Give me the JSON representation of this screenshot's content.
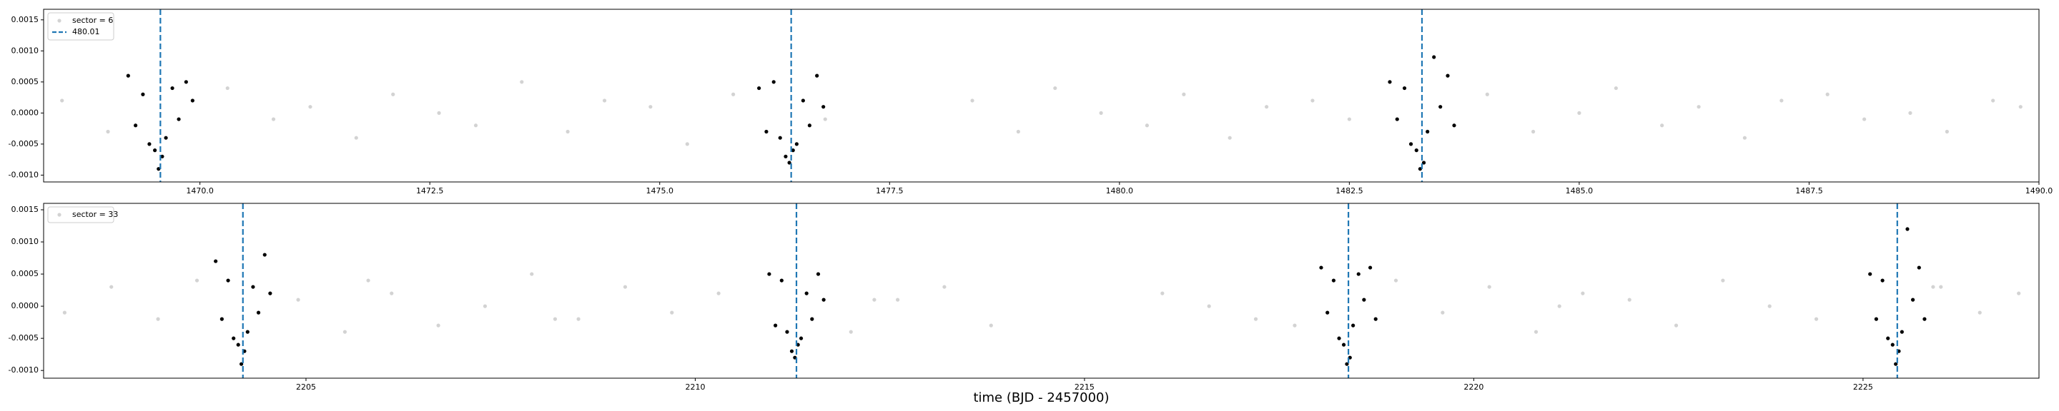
{
  "chart_data": [
    {
      "type": "scatter",
      "xlim": [
        1468.3,
        1490.0
      ],
      "ylim": [
        -0.00111,
        0.00167
      ],
      "xticks": [
        {
          "value": 1470,
          "label": "1470.0"
        },
        {
          "value": 1472.5,
          "label": "1472.5"
        },
        {
          "value": 1475,
          "label": "1475.0"
        },
        {
          "value": 1477.5,
          "label": "1477.5"
        },
        {
          "value": 1480,
          "label": "1480.0"
        },
        {
          "value": 1482.5,
          "label": "1482.5"
        },
        {
          "value": 1485,
          "label": "1485.0"
        },
        {
          "value": 1487.5,
          "label": "1487.5"
        },
        {
          "value": 1490,
          "label": "1490.0"
        }
      ],
      "yticks": [
        {
          "value": -0.001,
          "label": "-0.0010"
        },
        -0.0005,
        {
          "value": 0,
          "label": "0.0000"
        },
        0.0005,
        {
          "value": 0.001,
          "label": "0.0010"
        },
        0.0015
      ],
      "legend": "upper left",
      "series": [
        {
          "name": "sector = 6",
          "color": "#d3d3d3",
          "x": [
            1468.5,
            1469.0,
            1470.3,
            1470.8,
            1471.2,
            1471.7,
            1472.1,
            1472.6,
            1473.0,
            1473.5,
            1474.0,
            1474.4,
            1474.9,
            1475.3,
            1475.8,
            1476.8,
            1478.4,
            1478.9,
            1479.3,
            1479.8,
            1480.3,
            1480.7,
            1481.2,
            1481.6,
            1482.1,
            1482.5,
            1484.0,
            1484.5,
            1485.0,
            1485.4,
            1485.9,
            1486.3,
            1486.8,
            1487.2,
            1487.7,
            1488.1,
            1488.6,
            1489.0,
            1489.5,
            1489.8
          ],
          "values": [
            0.0002,
            -0.0003,
            0.0004,
            -0.0001,
            0.0001,
            -0.0004,
            0.0003,
            0.0,
            -0.0002,
            0.0005,
            -0.0003,
            0.0002,
            0.0001,
            -0.0005,
            0.0003,
            -0.0001,
            0.0002,
            -0.0003,
            0.0004,
            0.0,
            -0.0002,
            0.0003,
            -0.0004,
            0.0001,
            0.0002,
            -0.0001,
            0.0003,
            -0.0003,
            0.0,
            0.0004,
            -0.0002,
            0.0001,
            -0.0004,
            0.0002,
            0.0003,
            -0.0001,
            0.0,
            -0.0003,
            0.0002,
            0.0001
          ]
        },
        {
          "color": "#000000",
          "x": [
            1469.22,
            1469.3,
            1469.38,
            1469.45,
            1469.51,
            1469.55,
            1469.59,
            1469.63,
            1469.7,
            1469.77,
            1469.85,
            1469.92,
            1476.08,
            1476.16,
            1476.24,
            1476.31,
            1476.37,
            1476.41,
            1476.45,
            1476.49,
            1476.56,
            1476.63,
            1476.71,
            1476.78,
            1482.94,
            1483.02,
            1483.1,
            1483.17,
            1483.23,
            1483.27,
            1483.31,
            1483.35,
            1483.42,
            1483.49,
            1483.57,
            1483.64
          ],
          "values": [
            0.0006,
            -0.0002,
            0.0003,
            -0.0005,
            -0.0006,
            -0.0009,
            -0.0007,
            -0.0004,
            0.0004,
            -0.0001,
            0.0005,
            0.0002,
            0.0004,
            -0.0003,
            0.0005,
            -0.0004,
            -0.0007,
            -0.0008,
            -0.0006,
            -0.0005,
            0.0002,
            -0.0002,
            0.0006,
            0.0001,
            0.0005,
            -0.0001,
            0.0004,
            -0.0005,
            -0.0006,
            -0.0009,
            -0.0008,
            -0.0003,
            0.0009,
            0.0001,
            0.0006,
            -0.0002
          ]
        }
      ],
      "vlines": {
        "name": "480.01",
        "color": "#1f77b4",
        "x": [
          1469.57,
          1476.43,
          1483.29
        ]
      }
    },
    {
      "type": "scatter",
      "xlim": [
        2201.63,
        2227.26
      ],
      "ylim": [
        -0.00112,
        0.0016
      ],
      "xlabel": "time (BJD - 2457000)",
      "xticks": [
        2205,
        2210,
        2215,
        2220,
        2225
      ],
      "yticks": [
        {
          "value": -0.001,
          "label": "-0.0010"
        },
        -0.0005,
        {
          "value": 0,
          "label": "0.0000"
        },
        0.0005,
        {
          "value": 0.001,
          "label": "0.0010"
        },
        0.0015
      ],
      "legend": "upper left",
      "series": [
        {
          "name": "sector = 33",
          "color": "#d3d3d3",
          "x": [
            2201.9,
            2202.5,
            2203.1,
            2203.6,
            2204.9,
            2205.5,
            2206.1,
            2206.7,
            2207.3,
            2207.9,
            2208.5,
            2209.1,
            2209.7,
            2210.3,
            2212.0,
            2212.6,
            2213.2,
            2213.8,
            2216.0,
            2216.6,
            2217.2,
            2219.0,
            2219.6,
            2220.2,
            2220.8,
            2221.4,
            2222.0,
            2222.6,
            2223.2,
            2223.8,
            2224.4,
            2226.0,
            2226.5,
            2227.0,
            2217.7,
            2212.3,
            2205.8,
            2208.2,
            2221.1,
            2225.9
          ],
          "values": [
            -0.0001,
            0.0003,
            -0.0002,
            0.0004,
            0.0001,
            -0.0004,
            0.0002,
            -0.0003,
            0.0,
            0.0005,
            -0.0002,
            0.0003,
            -0.0001,
            0.0002,
            -0.0004,
            0.0001,
            0.0003,
            -0.0003,
            0.0002,
            0.0,
            -0.0002,
            0.0004,
            -0.0001,
            0.0003,
            -0.0004,
            0.0002,
            0.0001,
            -0.0003,
            0.0004,
            0.0,
            -0.0002,
            0.0003,
            -0.0001,
            0.0002,
            -0.0003,
            0.0001,
            0.0004,
            -0.0002,
            0.0,
            0.0003
          ]
        },
        {
          "color": "#000000",
          "x": [
            2203.84,
            2203.92,
            2204.0,
            2204.07,
            2204.13,
            2204.17,
            2204.21,
            2204.25,
            2204.32,
            2204.39,
            2204.47,
            2204.54,
            2210.95,
            2211.03,
            2211.11,
            2211.18,
            2211.24,
            2211.28,
            2211.32,
            2211.36,
            2211.43,
            2211.5,
            2211.58,
            2211.65,
            2218.04,
            2218.12,
            2218.2,
            2218.27,
            2218.33,
            2218.37,
            2218.41,
            2218.45,
            2218.52,
            2218.59,
            2218.67,
            2218.74,
            2225.09,
            2225.17,
            2225.25,
            2225.32,
            2225.38,
            2225.42,
            2225.46,
            2225.5,
            2225.57,
            2225.64,
            2225.72,
            2225.79
          ],
          "values": [
            0.0007,
            -0.0002,
            0.0004,
            -0.0005,
            -0.0006,
            -0.0009,
            -0.0007,
            -0.0004,
            0.0003,
            -0.0001,
            0.0008,
            0.0002,
            0.0005,
            -0.0003,
            0.0004,
            -0.0004,
            -0.0007,
            -0.0008,
            -0.0006,
            -0.0005,
            0.0002,
            -0.0002,
            0.0005,
            0.0001,
            0.0006,
            -0.0001,
            0.0004,
            -0.0005,
            -0.0006,
            -0.0009,
            -0.0008,
            -0.0003,
            0.0005,
            0.0001,
            0.0006,
            -0.0002,
            0.0005,
            -0.0002,
            0.0004,
            -0.0005,
            -0.0006,
            -0.0009,
            -0.0007,
            -0.0004,
            0.0012,
            0.0001,
            0.0006,
            -0.0002
          ]
        }
      ],
      "vlines": {
        "color": "#1f77b4",
        "x": [
          2204.19,
          2211.3,
          2218.39,
          2225.44
        ]
      }
    }
  ]
}
